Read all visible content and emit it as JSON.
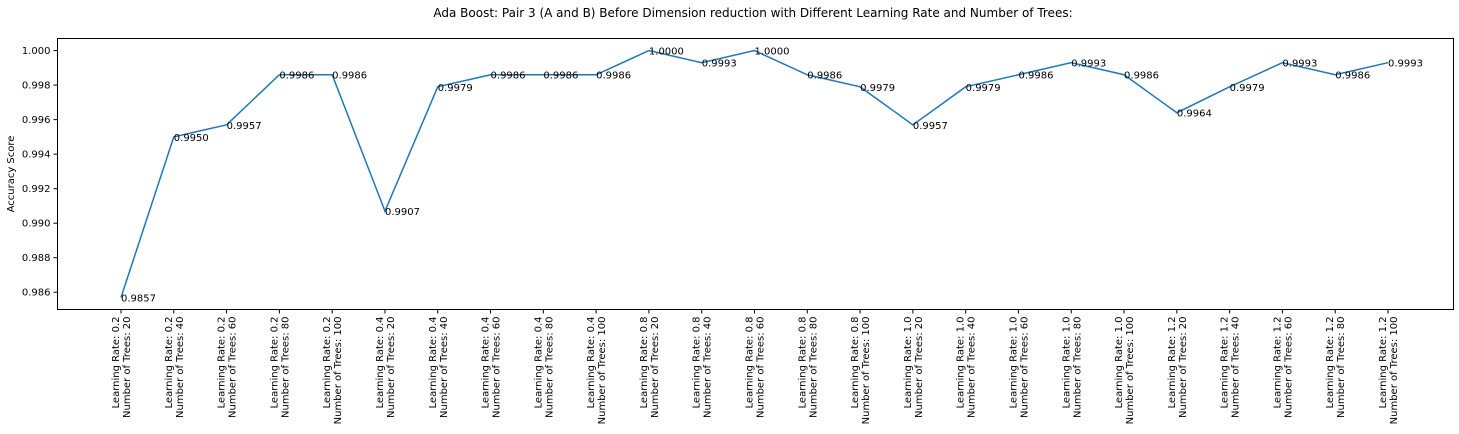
{
  "chart_data": {
    "type": "line",
    "title": "Ada Boost: Pair 3 (A and B) Before Dimension reduction with Different Learning Rate and Number of Trees:",
    "xlabel": "",
    "ylabel": "Accuracy Score",
    "ylim": [
      0.985,
      1.0007
    ],
    "yticks": [
      0.986,
      0.988,
      0.99,
      0.992,
      0.994,
      0.996,
      0.998,
      1.0
    ],
    "ytick_labels": [
      "0.986",
      "0.988",
      "0.990",
      "0.992",
      "0.994",
      "0.996",
      "0.998",
      "1.000"
    ],
    "grid": false,
    "line_color": "#1f77b4",
    "categories": [
      {
        "line1": "Learning Rate: 0.2",
        "line2": "Number of Trees: 20"
      },
      {
        "line1": "Learning Rate: 0.2",
        "line2": "Number of Trees: 40"
      },
      {
        "line1": "Learning Rate: 0.2",
        "line2": "Number of Trees: 60"
      },
      {
        "line1": "Learning Rate: 0.2",
        "line2": "Number of Trees: 80"
      },
      {
        "line1": "Learning Rate: 0.2",
        "line2": "Number of Trees: 100"
      },
      {
        "line1": "Learning Rate: 0.4",
        "line2": "Number of Trees: 20"
      },
      {
        "line1": "Learning Rate: 0.4",
        "line2": "Number of Trees: 40"
      },
      {
        "line1": "Learning Rate: 0.4",
        "line2": "Number of Trees: 60"
      },
      {
        "line1": "Learning Rate: 0.4",
        "line2": "Number of Trees: 80"
      },
      {
        "line1": "Learning Rate: 0.4",
        "line2": "Number of Trees: 100"
      },
      {
        "line1": "Learning Rate: 0.8",
        "line2": "Number of Trees: 20"
      },
      {
        "line1": "Learning Rate: 0.8",
        "line2": "Number of Trees: 40"
      },
      {
        "line1": "Learning Rate: 0.8",
        "line2": "Number of Trees: 60"
      },
      {
        "line1": "Learning Rate: 0.8",
        "line2": "Number of Trees: 80"
      },
      {
        "line1": "Learning Rate: 0.8",
        "line2": "Number of Trees: 100"
      },
      {
        "line1": "Learning Rate: 1.0",
        "line2": "Number of Trees: 20"
      },
      {
        "line1": "Learning Rate: 1.0",
        "line2": "Number of Trees: 40"
      },
      {
        "line1": "Learning Rate: 1.0",
        "line2": "Number of Trees: 60"
      },
      {
        "line1": "Learning Rate: 1.0",
        "line2": "Number of Trees: 80"
      },
      {
        "line1": "Learning Rate: 1.0",
        "line2": "Number of Trees: 100"
      },
      {
        "line1": "Learning Rate: 1.2",
        "line2": "Number of Trees: 20"
      },
      {
        "line1": "Learning Rate: 1.2",
        "line2": "Number of Trees: 40"
      },
      {
        "line1": "Learning Rate: 1.2",
        "line2": "Number of Trees: 60"
      },
      {
        "line1": "Learning Rate: 1.2",
        "line2": "Number of Trees: 80"
      },
      {
        "line1": "Learning Rate: 1.2",
        "line2": "Number of Trees: 100"
      }
    ],
    "values": [
      0.9857,
      0.995,
      0.9957,
      0.9986,
      0.9986,
      0.9907,
      0.9979,
      0.9986,
      0.9986,
      0.9986,
      1.0,
      0.9993,
      1.0,
      0.9986,
      0.9979,
      0.9957,
      0.9979,
      0.9986,
      0.9993,
      0.9986,
      0.9964,
      0.9979,
      0.9993,
      0.9986,
      0.9993
    ],
    "value_labels": [
      "0.9857",
      "0.9950",
      "0.9957",
      "0.9986",
      "0.9986",
      "0.9907",
      "0.9979",
      "0.9986",
      "0.9986",
      "0.9986",
      "1.0000",
      "0.9993",
      "1.0000",
      "0.9986",
      "0.9979",
      "0.9957",
      "0.9979",
      "0.9986",
      "0.9993",
      "0.9986",
      "0.9964",
      "0.9979",
      "0.9993",
      "0.9986",
      "0.9993"
    ]
  }
}
